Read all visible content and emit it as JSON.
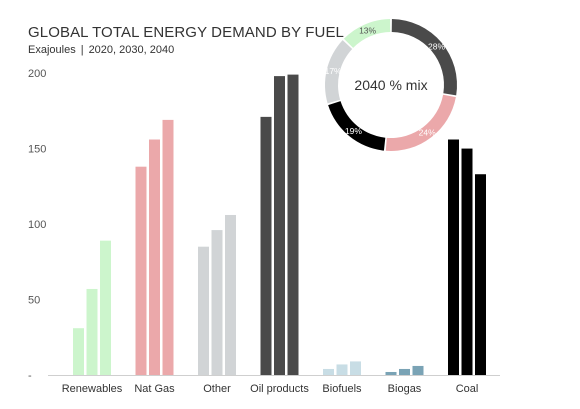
{
  "header": {
    "title": "GLOBAL TOTAL ENERGY DEMAND BY FUEL",
    "unit": "Exajoules",
    "separator": "|",
    "years": "2020, 2030, 2040"
  },
  "chart_data": [
    {
      "type": "bar",
      "title": "GLOBAL TOTAL ENERGY DEMAND BY FUEL",
      "subtitle": "Exajoules | 2020, 2030, 2040",
      "categories": [
        "Renewables",
        "Nat Gas",
        "Other",
        "Oil products",
        "Biofuels",
        "Biogas",
        "Coal"
      ],
      "series_years": [
        "2020",
        "2030",
        "2040"
      ],
      "values": [
        [
          31,
          57,
          89
        ],
        [
          138,
          156,
          169
        ],
        [
          85,
          96,
          106
        ],
        [
          171,
          198,
          199
        ],
        [
          4,
          7,
          9
        ],
        [
          2,
          4,
          6
        ],
        [
          156,
          150,
          133
        ]
      ],
      "colors": [
        "#ccf5cc",
        "#eba8aa",
        "#d1d4d6",
        "#4a4a4a",
        "#c8dde5",
        "#7aa3b5",
        "#000000"
      ],
      "ylim": [
        0,
        210
      ],
      "yticks": [
        "-",
        "50",
        "100",
        "150",
        "200"
      ],
      "ytick_values": [
        0,
        50,
        100,
        150,
        200
      ],
      "grid": false
    },
    {
      "type": "pie",
      "title": "2040 % mix",
      "donut": true,
      "slices": [
        {
          "category": "Oil products",
          "value": 28,
          "label": "28%",
          "color": "#4a4a4a"
        },
        {
          "category": "Nat Gas",
          "value": 24,
          "label": "24%",
          "color": "#eba8aa"
        },
        {
          "category": "Coal",
          "value": 19,
          "label": "19%",
          "color": "#000000"
        },
        {
          "category": "Other",
          "value": 17,
          "label": "17%",
          "color": "#d1d4d6"
        },
        {
          "category": "Renewables",
          "value": 13,
          "label": "13%",
          "color": "#ccf5cc"
        }
      ]
    }
  ]
}
